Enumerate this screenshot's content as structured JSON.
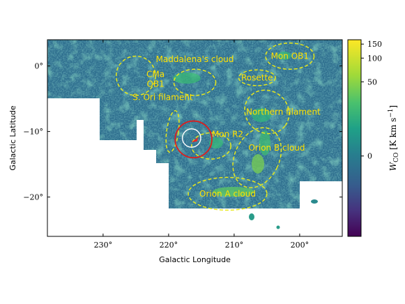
{
  "chart_data": {
    "type": "heatmap",
    "xlabel": "Galactic Longitude",
    "ylabel": "Galactic Latitude",
    "xlim": [
      238.5,
      193.5
    ],
    "ylim": [
      -26,
      4
    ],
    "xticks": [
      230,
      220,
      210,
      200
    ],
    "xtick_labels": [
      "230°",
      "220°",
      "210°",
      "200°"
    ],
    "yticks": [
      0,
      -10,
      -20
    ],
    "ytick_labels": [
      "0°",
      "−10°",
      "−20°"
    ],
    "colorbar": {
      "label_main": "W",
      "label_sub": "CO",
      "label_units": " [K km s",
      "label_exp": "−1",
      "label_close": "]",
      "colormap": "viridis",
      "tick_values": [
        150,
        100,
        50,
        0
      ],
      "tick_labels": [
        "150",
        "100",
        "50",
        "0"
      ]
    },
    "regions": [
      {
        "label_lines": [
          "CMa",
          "OB1"
        ],
        "center": [
          225,
          -1.5
        ],
        "semi_axes": [
          3.0,
          3.0
        ],
        "style": "dashed",
        "color": "#e8e81a"
      },
      {
        "label_lines": [
          "Maddalena's cloud"
        ],
        "center": [
          216,
          -2.5
        ],
        "semi_axes": [
          3.2,
          2.0
        ],
        "style": "dashed",
        "color": "#e8e81a"
      },
      {
        "label_lines": [
          "Rosette"
        ],
        "center": [
          206.5,
          -1.8
        ],
        "semi_axes": [
          2.8,
          1.2
        ],
        "style": "dashed",
        "color": "#e8e81a"
      },
      {
        "label_lines": [
          "Mon OB1"
        ],
        "center": [
          201.5,
          1.5
        ],
        "semi_axes": [
          3.7,
          2.0
        ],
        "style": "dashed",
        "color": "#e8e81a"
      },
      {
        "label_lines": [
          "S. Ori filament"
        ],
        "center": [
          219.4,
          -10
        ],
        "semi_axes": [
          0.9,
          3.2
        ],
        "style": "dashed",
        "color": "#e8e81a"
      },
      {
        "label_lines": [
          "Northern filament"
        ],
        "center": [
          205,
          -7
        ],
        "semi_axes": [
          3.5,
          3.2
        ],
        "style": "dashed",
        "color": "#e8e81a"
      },
      {
        "label_lines": [
          "Mon R2"
        ],
        "center": [
          213.5,
          -12.2
        ],
        "semi_axes": [
          3.0,
          2.0
        ],
        "style": "dashed",
        "color": "#e8e81a"
      },
      {
        "label_lines": [
          "Orion B cloud"
        ],
        "center": [
          206.5,
          -14
        ],
        "semi_axes": [
          3.4,
          4.8
        ],
        "style": "dashed",
        "color": "#e8e81a"
      },
      {
        "label_lines": [
          "Orion A cloud"
        ],
        "center": [
          211,
          -19.5
        ],
        "semi_axes": [
          6.0,
          2.5
        ],
        "style": "dashed",
        "color": "#e8e81a"
      }
    ],
    "circles": [
      {
        "center": [
          216.2,
          -11.2
        ],
        "radius": 2.8,
        "color": "#dd1e1e"
      },
      {
        "center": [
          216.5,
          -11.0
        ],
        "radius": 1.4,
        "color": "#ffffff"
      }
    ],
    "marker": {
      "center": [
        216.0,
        -11.3
      ],
      "color": "#e8242a"
    }
  }
}
